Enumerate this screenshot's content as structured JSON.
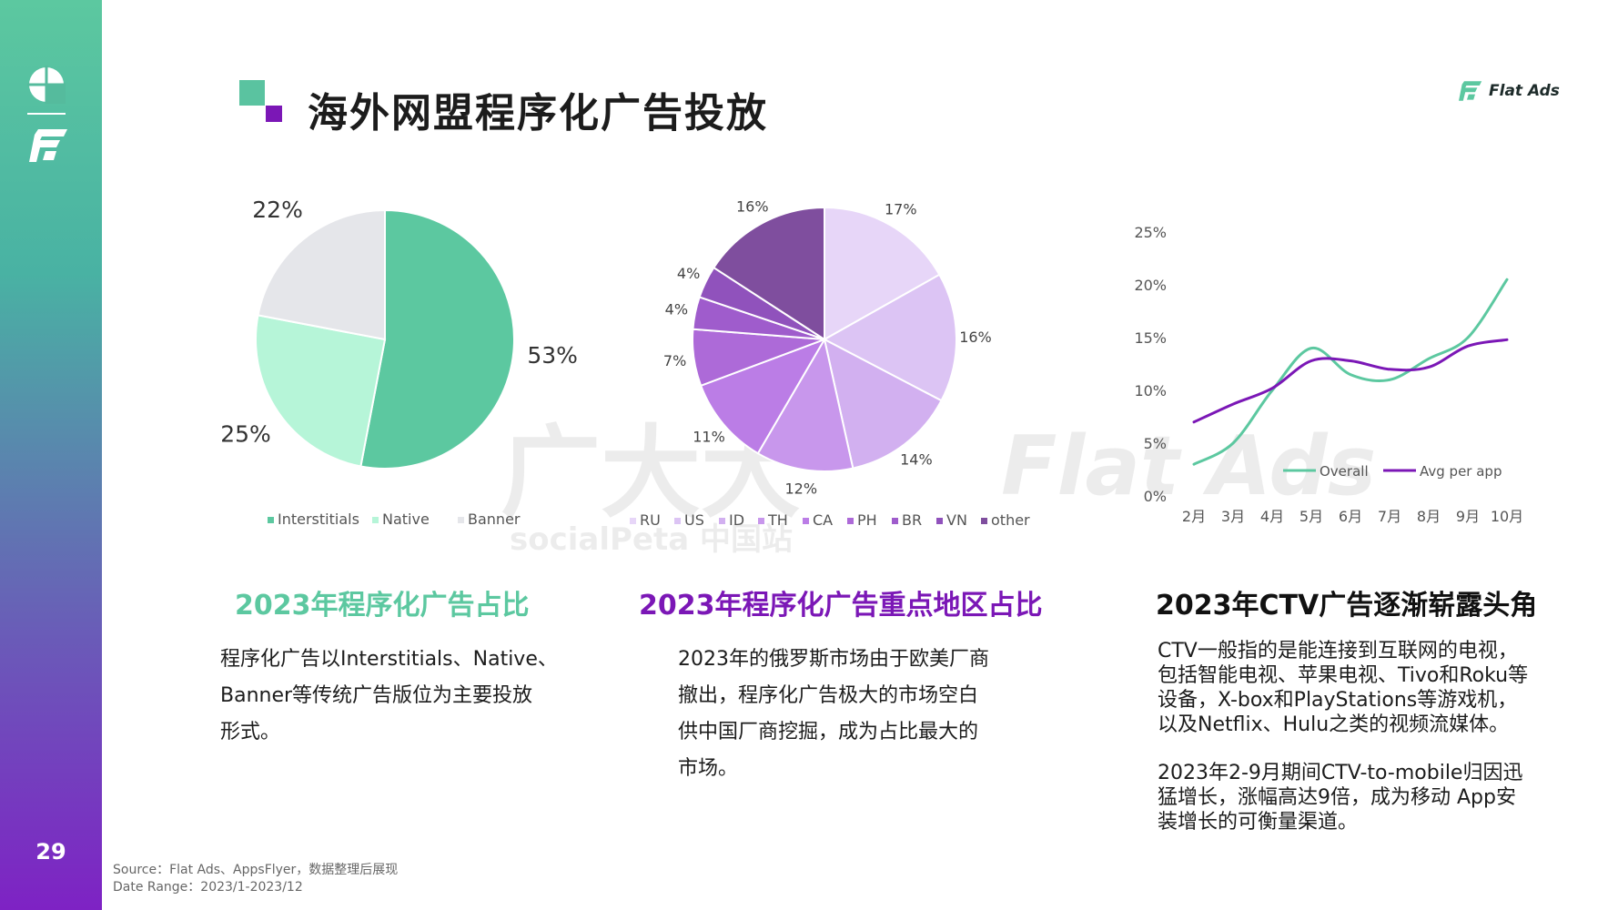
{
  "page": {
    "title": "海外网盟程序化广告投放",
    "page_number": "29",
    "brand": "Flat Ads",
    "watermark": {
      "cn": "广大大",
      "en": "Flat Ads",
      "sub": "socialPeta 中国站"
    },
    "colors": {
      "green": "#5cc8a0",
      "purple": "#7e22c4",
      "sidebar_top": "#5cc8a0",
      "sidebar_bottom": "#7e22c4"
    }
  },
  "sections": [
    {
      "heading": "2023年程序化广告占比",
      "heading_color": "#5cc8a0",
      "lines": [
        "程序化广告以Interstitials、Native、",
        "Banner等传统广告版位为主要投放",
        "形式。"
      ]
    },
    {
      "heading": "2023年程序化广告重点地区占比",
      "heading_color": "#7b17b6",
      "lines": [
        "2023年的俄罗斯市场由于欧美厂商",
        "撤出，程序化广告极大的市场空白",
        "供中国厂商挖掘，成为占比最大的",
        "市场。"
      ]
    },
    {
      "heading": "2023年CTV广告逐渐崭露头角",
      "heading_color": "#111111",
      "paragraphs": [
        [
          "CTV一般指的是能连接到互联网的电视，",
          "包括智能电视、苹果电视、Tivo和Roku等",
          "设备，X-box和PlayStations等游戏机，",
          "以及Netflix、Hulu之类的视频流媒体。"
        ],
        [
          "2023年2-9月期间CTV-to-mobile归因迅",
          "猛增长，涨幅高达9倍，成为移动 App安",
          "装增长的可衡量渠道。"
        ]
      ]
    }
  ],
  "footnote": {
    "source": "Source：Flat Ads、AppsFlyer，数据整理后展现",
    "date_range": "Date Range：2023/1-2023/12"
  },
  "chart_data": [
    {
      "type": "pie",
      "categories": [
        "Interstitials",
        "Native",
        "Banner"
      ],
      "values": [
        53,
        25,
        22
      ],
      "labels": [
        "53%",
        "25%",
        "22%"
      ],
      "colors": [
        "#5cc8a0",
        "#b6f5d8",
        "#e5e6ea"
      ],
      "legend": "bottom"
    },
    {
      "type": "pie",
      "categories": [
        "RU",
        "US",
        "ID",
        "TH",
        "CA",
        "PH",
        "BR",
        "VN",
        "other"
      ],
      "values": [
        17,
        16,
        14,
        12,
        11,
        7,
        4,
        4,
        16
      ],
      "labels": [
        "17%",
        "16%",
        "14%",
        "12%",
        "11%",
        "7%",
        "4%",
        "4%",
        "16%"
      ],
      "colors": [
        "#e7d6f8",
        "#dcc4f4",
        "#d2b0f0",
        "#c897ec",
        "#bb7de6",
        "#ad6ad8",
        "#9f5ccc",
        "#9052bc",
        "#7f4e9e"
      ],
      "legend": "bottom"
    },
    {
      "type": "line",
      "x": [
        "2月",
        "3月",
        "4月",
        "5月",
        "6月",
        "7月",
        "8月",
        "9月",
        "10月"
      ],
      "series": [
        {
          "name": "Overall",
          "values": [
            3,
            5,
            10,
            14,
            11.5,
            11,
            13,
            15,
            20.5
          ],
          "color": "#5cc8a0"
        },
        {
          "name": "Avg per app",
          "values": [
            7,
            8.7,
            10.2,
            12.8,
            12.8,
            12,
            12.2,
            14.2,
            14.8
          ],
          "color": "#7b17b6"
        }
      ],
      "yticks": [
        "0%",
        "5%",
        "10%",
        "15%",
        "20%",
        "25%"
      ],
      "ylim": [
        0,
        25
      ],
      "grid": false,
      "legend": "inside-bottom-right"
    }
  ]
}
